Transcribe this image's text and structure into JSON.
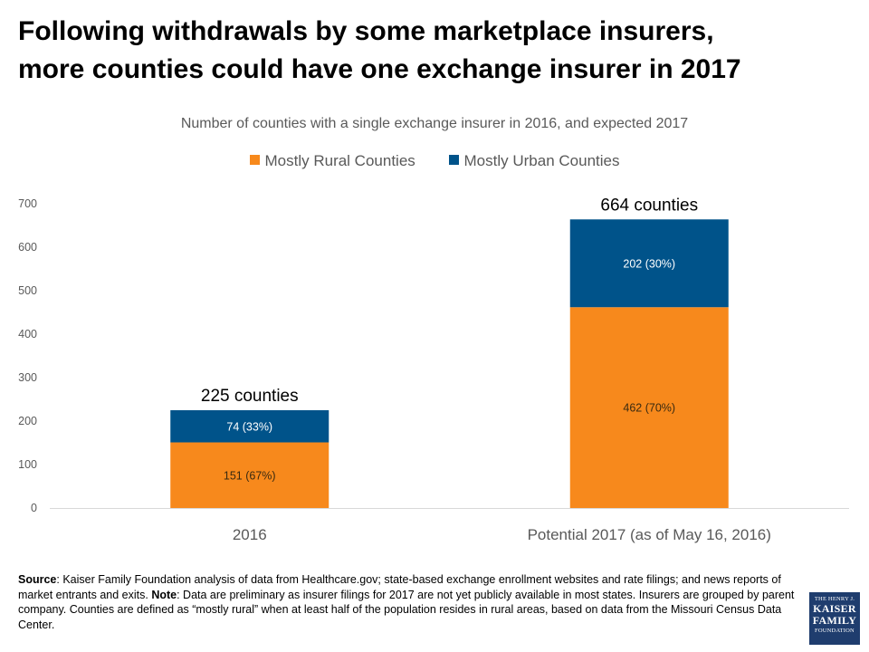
{
  "title_line1": "Following withdrawals by some marketplace insurers,",
  "title_line2": "more counties could have one exchange insurer in 2017",
  "subtitle": "Number of counties with a single exchange insurer in 2016, and expected 2017",
  "colors": {
    "rural": "#f7891c",
    "urban": "#00538a",
    "axis": "#d9d9d9",
    "tick_text": "#595959"
  },
  "chart_data": {
    "type": "bar",
    "stacked": true,
    "categories": [
      "2016",
      "Potential 2017 (as of May 16, 2016)"
    ],
    "series": [
      {
        "name": "Mostly Rural Counties",
        "values": [
          151,
          462
        ],
        "labels": [
          "151 (67%)",
          "462 (70%)"
        ]
      },
      {
        "name": "Mostly Urban Counties",
        "values": [
          74,
          202
        ],
        "labels": [
          "74 (33%)",
          "202 (30%)"
        ]
      }
    ],
    "totals": [
      "225 counties",
      "664 counties"
    ],
    "yticks": [
      0,
      100,
      200,
      300,
      400,
      500,
      600,
      700
    ],
    "ylim": [
      0,
      700
    ],
    "legend_position": "top-center"
  },
  "footnote": {
    "source_label": "Source",
    "source_text": ": Kaiser Family Foundation  analysis of data from  Healthcare.gov; state-based exchange enrollment websites and rate filings; and news reports of market entrants and exits.",
    "note_label": "Note",
    "note_text": ": Data are preliminary as insurer filings for 2017 are not yet publicly available in most states. Insurers are grouped by parent company. Counties are defined as “mostly rural” when at least half of the population resides in rural areas, based on data from  the Missouri Census Data Center."
  },
  "logo": {
    "line1": "THE HENRY J.",
    "line2": "KAISER",
    "line3": "FAMILY",
    "line4": "FOUNDATION"
  }
}
